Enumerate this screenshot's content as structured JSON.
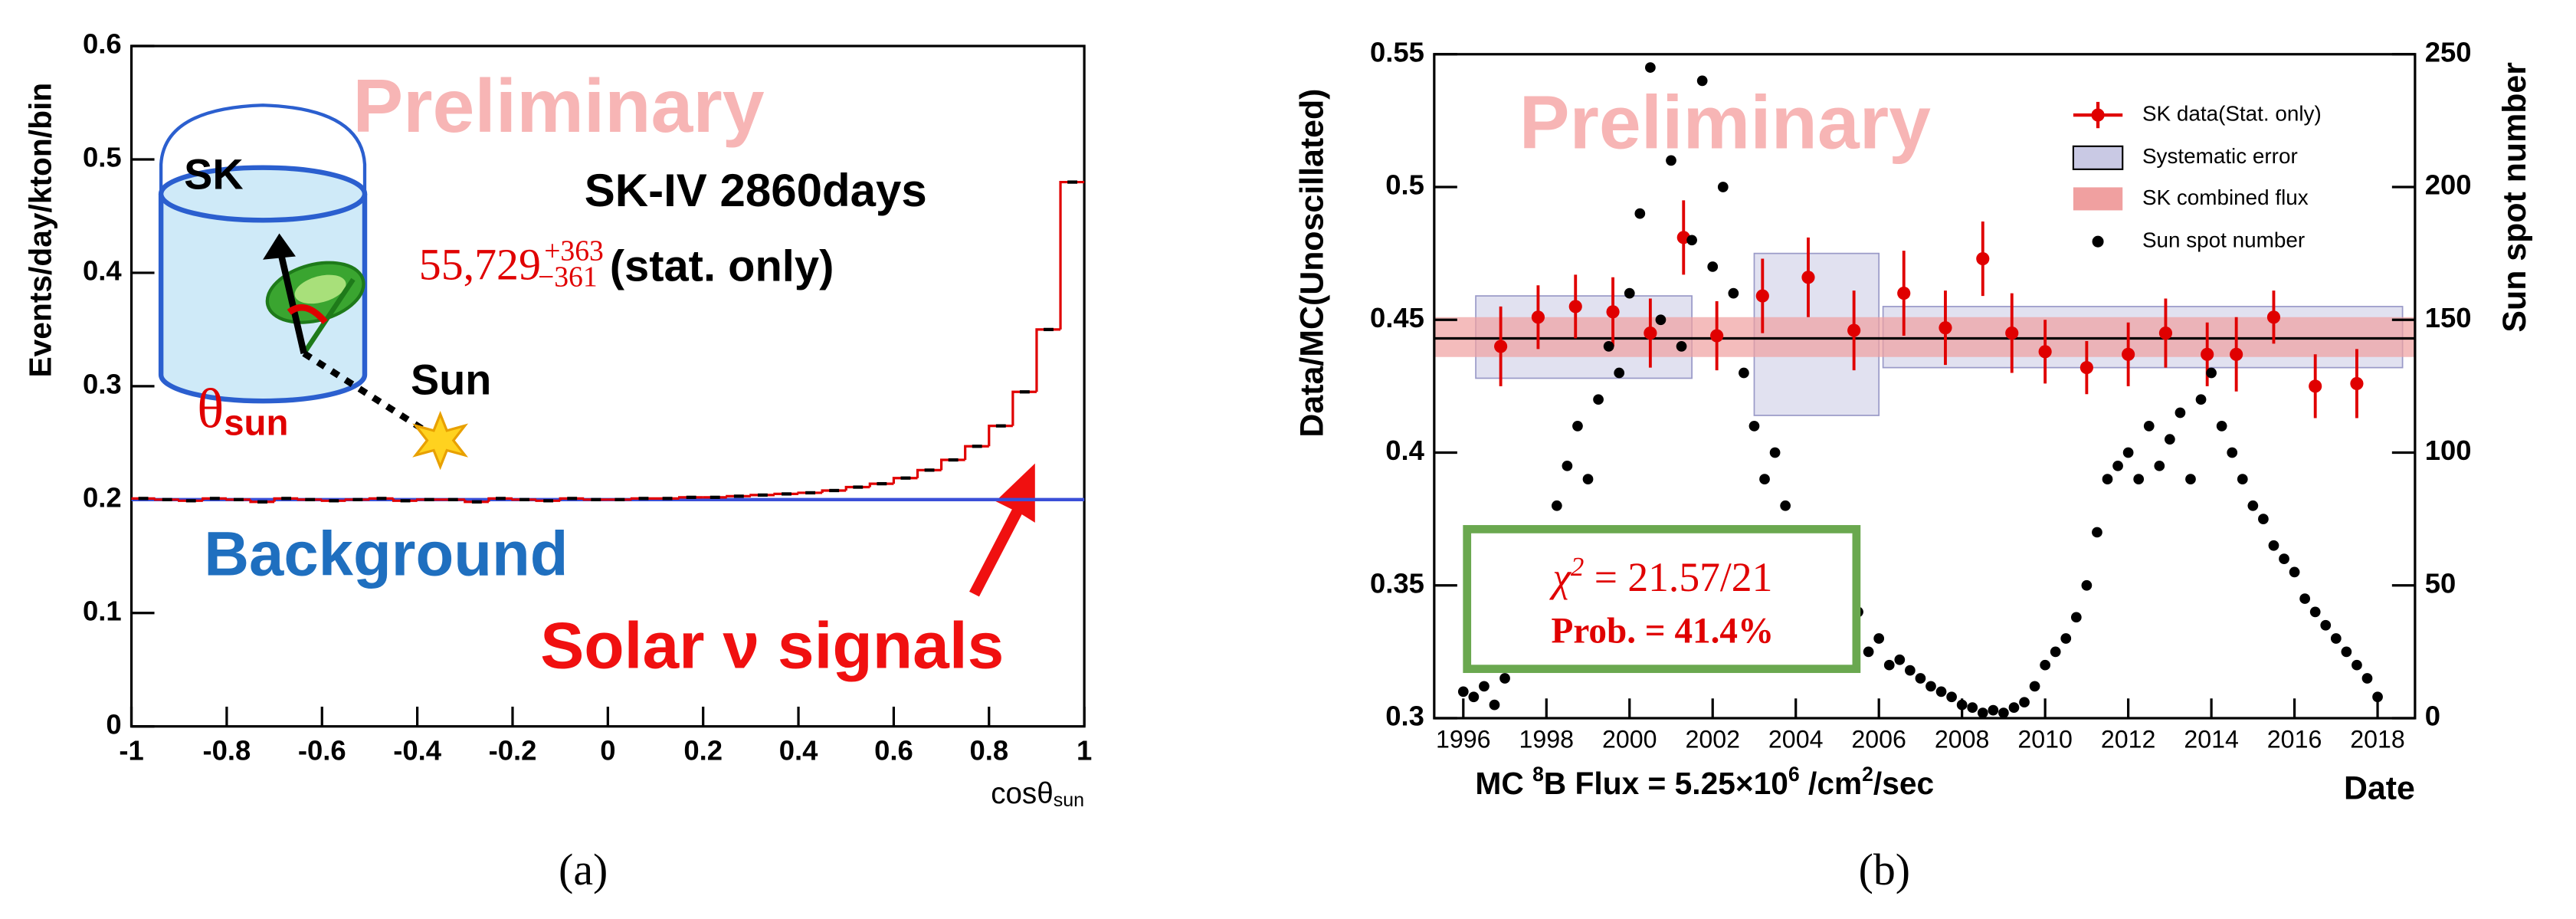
{
  "chart_data": [
    {
      "type": "histogram",
      "watermark": "Preliminary",
      "label": "SK-IV 2860days",
      "rate": {
        "value": "55,729",
        "plus": "+363",
        "minus": "−361",
        "note": " (stat. only)"
      },
      "detector": "SK",
      "angle": [
        "θ",
        "sun"
      ],
      "sun": "Sun",
      "background_label": "Background",
      "signal_label": "Solar ν signals",
      "xlabel": [
        "cosθ",
        "sun"
      ],
      "ylabel": "Events/day/kton/bin",
      "panel": "(a)",
      "bins": [
        -1,
        -0.95,
        -0.9,
        -0.85,
        -0.8,
        -0.75,
        -0.7,
        -0.65,
        -0.6,
        -0.55,
        -0.5,
        -0.45,
        -0.4,
        -0.35,
        -0.3,
        -0.25,
        -0.2,
        -0.15,
        -0.1,
        -0.05,
        0,
        0.05,
        0.1,
        0.15,
        0.2,
        0.25,
        0.3,
        0.35,
        0.4,
        0.45,
        0.5,
        0.55,
        0.6,
        0.65,
        0.7,
        0.75,
        0.8,
        0.85,
        0.9,
        0.95,
        1
      ],
      "values": [
        0.201,
        0.2,
        0.199,
        0.201,
        0.2,
        0.198,
        0.201,
        0.2,
        0.199,
        0.2,
        0.201,
        0.199,
        0.2,
        0.2,
        0.198,
        0.201,
        0.2,
        0.199,
        0.201,
        0.2,
        0.2,
        0.201,
        0.201,
        0.202,
        0.202,
        0.203,
        0.204,
        0.205,
        0.206,
        0.208,
        0.211,
        0.214,
        0.219,
        0.226,
        0.235,
        0.247,
        0.265,
        0.295,
        0.35,
        0.48
      ],
      "color": "#e00000",
      "background": 0.2,
      "background_color": "#3a4fd8",
      "xlim": [
        -1,
        1
      ],
      "xticks": [
        -1,
        -0.8,
        -0.6,
        -0.4,
        -0.2,
        0,
        0.2,
        0.4,
        0.6,
        0.8,
        1
      ],
      "ylim": [
        0,
        0.6
      ],
      "yticks": [
        0,
        0.1,
        0.2,
        0.3,
        0.4,
        0.5,
        0.6
      ]
    },
    {
      "type": "scatter",
      "watermark": "Preliminary",
      "ylabel": "Data/MC(Unoscillated)",
      "y2label": "Sun spot number",
      "xlabel": "Date",
      "footnote": [
        "MC ",
        "8",
        "B Flux = 5.25×10",
        "6",
        " /cm",
        "2",
        "/sec"
      ],
      "panel": "(b)",
      "fit_box": {
        "chi": [
          "χ",
          "2",
          " = 21.57/21"
        ],
        "prob": "Prob. = 41.4%"
      },
      "series": [
        {
          "name": "SK data(Stat. only)",
          "color": "#e00000",
          "x": [
            1996.9,
            1997.8,
            1998.7,
            1999.6,
            2000.5,
            2001.3,
            2002.1,
            2003.2,
            2004.3,
            2005.4,
            2006.6,
            2007.6,
            2008.5,
            2009.2,
            2010.0,
            2011.0,
            2012.0,
            2012.9,
            2013.9,
            2014.6,
            2015.5,
            2016.5,
            2017.5
          ],
          "values": [
            0.44,
            0.451,
            0.455,
            0.453,
            0.445,
            0.481,
            0.444,
            0.459,
            0.466,
            0.446,
            0.46,
            0.447,
            0.473,
            0.445,
            0.438,
            0.432,
            0.437,
            0.445,
            0.437,
            0.437,
            0.451,
            0.425,
            0.426
          ],
          "errors": [
            0.015,
            0.012,
            0.012,
            0.013,
            0.013,
            0.014,
            0.013,
            0.014,
            0.015,
            0.015,
            0.016,
            0.014,
            0.014,
            0.015,
            0.012,
            0.01,
            0.012,
            0.013,
            0.012,
            0.014,
            0.01,
            0.012,
            0.013
          ]
        },
        {
          "name": "Sun spot number",
          "color": "#000000",
          "axis": "y2",
          "x": [
            1996,
            1996.25,
            1996.5,
            1996.75,
            1997,
            1997.25,
            1997.5,
            1997.75,
            1998,
            1998.25,
            1998.5,
            1998.75,
            1999,
            1999.25,
            1999.5,
            1999.75,
            2000,
            2000.25,
            2000.5,
            2000.75,
            2001,
            2001.25,
            2001.5,
            2001.75,
            2002,
            2002.25,
            2002.5,
            2002.75,
            2003,
            2003.25,
            2003.5,
            2003.75,
            2004,
            2004.25,
            2004.5,
            2004.75,
            2005,
            2005.25,
            2005.5,
            2005.75,
            2006,
            2006.25,
            2006.5,
            2006.75,
            2007,
            2007.25,
            2007.5,
            2007.75,
            2008,
            2008.25,
            2008.5,
            2008.75,
            2009,
            2009.25,
            2009.5,
            2009.75,
            2010,
            2010.25,
            2010.5,
            2010.75,
            2011,
            2011.25,
            2011.5,
            2011.75,
            2012,
            2012.25,
            2012.5,
            2012.75,
            2013,
            2013.25,
            2013.5,
            2013.75,
            2014,
            2014.25,
            2014.5,
            2014.75,
            2015,
            2015.25,
            2015.5,
            2015.75,
            2016,
            2016.25,
            2016.5,
            2016.75,
            2017,
            2017.25,
            2017.5,
            2017.75,
            2018
          ],
          "values": [
            10,
            8,
            12,
            5,
            15,
            25,
            35,
            40,
            60,
            80,
            95,
            110,
            90,
            120,
            140,
            130,
            160,
            190,
            245,
            150,
            210,
            140,
            180,
            240,
            170,
            200,
            160,
            130,
            110,
            90,
            100,
            80,
            60,
            65,
            50,
            45,
            55,
            35,
            40,
            25,
            30,
            20,
            22,
            18,
            15,
            12,
            10,
            8,
            5,
            4,
            2,
            3,
            2,
            4,
            6,
            12,
            20,
            25,
            30,
            38,
            50,
            70,
            90,
            95,
            100,
            90,
            110,
            95,
            105,
            115,
            90,
            120,
            130,
            110,
            100,
            90,
            80,
            75,
            65,
            60,
            55,
            45,
            40,
            35,
            30,
            25,
            20,
            15,
            8
          ]
        }
      ],
      "systematic_error": {
        "name": "Systematic error",
        "color": "#c9c9e4",
        "x0": [
          1996.3,
          2003.0,
          2006.1
        ],
        "x1": [
          2001.5,
          2006.0,
          2018.6
        ],
        "lows": [
          0.428,
          0.414,
          0.432
        ],
        "highs": [
          0.459,
          0.475,
          0.455
        ]
      },
      "combined_flux": {
        "name": "SK combined flux",
        "color": "#f0a0a0",
        "value": 0.443,
        "low": 0.436,
        "high": 0.451
      },
      "xlim": [
        1995.3,
        2018.9
      ],
      "xticks": [
        1996,
        1998,
        2000,
        2002,
        2004,
        2006,
        2008,
        2010,
        2012,
        2014,
        2016,
        2018
      ],
      "ylim": [
        0.3,
        0.55
      ],
      "yticks": [
        0.3,
        0.35,
        0.4,
        0.45,
        0.5,
        0.55
      ],
      "y2lim": [
        0,
        250
      ],
      "y2ticks": [
        0,
        50,
        100,
        150,
        200,
        250
      ]
    }
  ]
}
